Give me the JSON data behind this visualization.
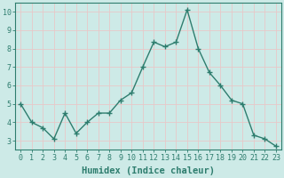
{
  "x": [
    0,
    1,
    2,
    3,
    4,
    5,
    6,
    7,
    8,
    9,
    10,
    11,
    12,
    13,
    14,
    15,
    16,
    17,
    18,
    19,
    20,
    21,
    22,
    23
  ],
  "y": [
    5.0,
    4.0,
    3.7,
    3.1,
    4.5,
    3.4,
    4.0,
    4.5,
    4.5,
    5.2,
    5.6,
    7.0,
    8.35,
    8.1,
    8.35,
    10.1,
    8.0,
    6.7,
    6.0,
    5.2,
    5.0,
    3.3,
    3.1,
    2.7
  ],
  "line_color": "#2e7d6e",
  "marker": "+",
  "markersize": 4,
  "linewidth": 1.0,
  "xlabel": "Humidex (Indice chaleur)",
  "xlim": [
    -0.5,
    23.5
  ],
  "ylim": [
    2.5,
    10.5
  ],
  "yticks": [
    3,
    4,
    5,
    6,
    7,
    8,
    9,
    10
  ],
  "xticks": [
    0,
    1,
    2,
    3,
    4,
    5,
    6,
    7,
    8,
    9,
    10,
    11,
    12,
    13,
    14,
    15,
    16,
    17,
    18,
    19,
    20,
    21,
    22,
    23
  ],
  "bg_color": "#cdeae7",
  "grid_color": "#e8c8c8",
  "line_color2": "#2e7d6e",
  "tick_color": "#2e7d6e",
  "label_color": "#2e7d6e",
  "xlabel_fontsize": 7.5,
  "tick_fontsize": 6.0,
  "spine_color": "#2e7d6e"
}
